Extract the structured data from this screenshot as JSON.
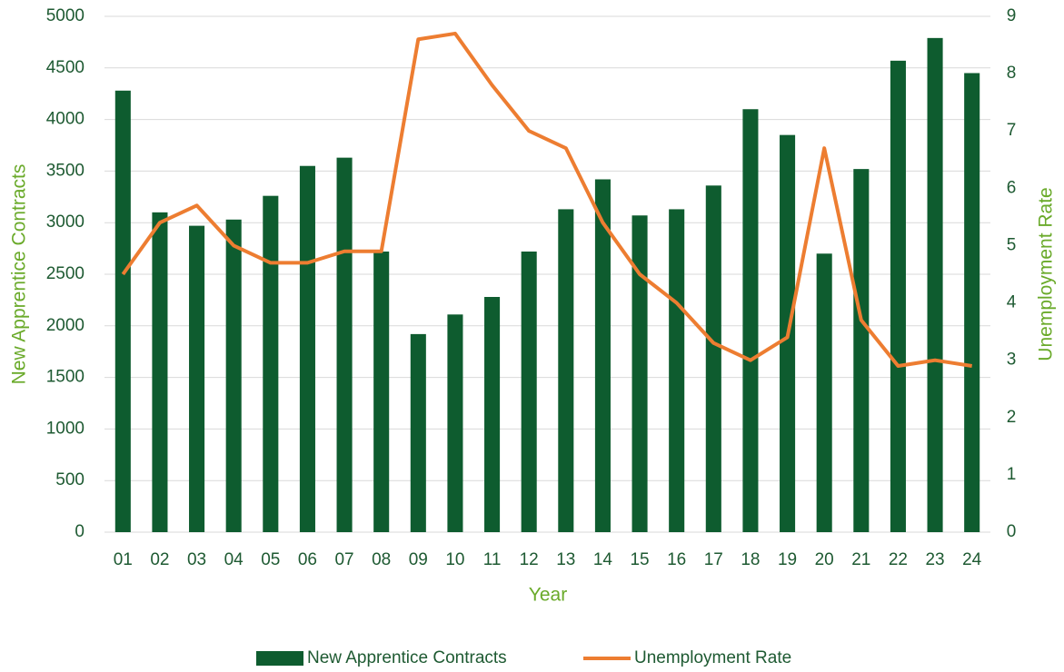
{
  "chart_data": {
    "type": "bar_line",
    "categories": [
      "01",
      "02",
      "03",
      "04",
      "05",
      "06",
      "07",
      "08",
      "09",
      "10",
      "11",
      "12",
      "13",
      "14",
      "15",
      "16",
      "17",
      "18",
      "19",
      "20",
      "21",
      "22",
      "23",
      "24"
    ],
    "xlabel": "Year",
    "ylabel": "New Apprentice Contracts",
    "y2label": "Unemployment Rate",
    "ylim": [
      0,
      5000
    ],
    "yticks": [
      0,
      500,
      1000,
      1500,
      2000,
      2500,
      3000,
      3500,
      4000,
      4500,
      5000
    ],
    "y2lim": [
      0,
      9
    ],
    "y2ticks": [
      0,
      1,
      2,
      3,
      4,
      5,
      6,
      7,
      8,
      9
    ],
    "grid": true,
    "legend": "bottom",
    "series": [
      {
        "name": "New Apprentice Contracts",
        "color": "#0e5c2f",
        "type": "bar",
        "values": [
          4280,
          3100,
          2970,
          3030,
          3260,
          3550,
          3630,
          2720,
          1920,
          2110,
          2280,
          2720,
          3130,
          3420,
          3070,
          3130,
          3360,
          4100,
          3850,
          2700,
          3520,
          4570,
          4790,
          4450
        ]
      },
      {
        "name": "Unemployment Rate",
        "color": "#ed7d31",
        "type": "line",
        "axis": "y2",
        "values": [
          4.5,
          5.4,
          5.7,
          5.0,
          4.7,
          4.7,
          4.9,
          4.9,
          8.6,
          8.7,
          7.8,
          7.0,
          6.7,
          5.4,
          4.5,
          4.0,
          3.3,
          3.0,
          3.4,
          6.7,
          3.7,
          2.9,
          3.0,
          2.9
        ]
      }
    ]
  }
}
